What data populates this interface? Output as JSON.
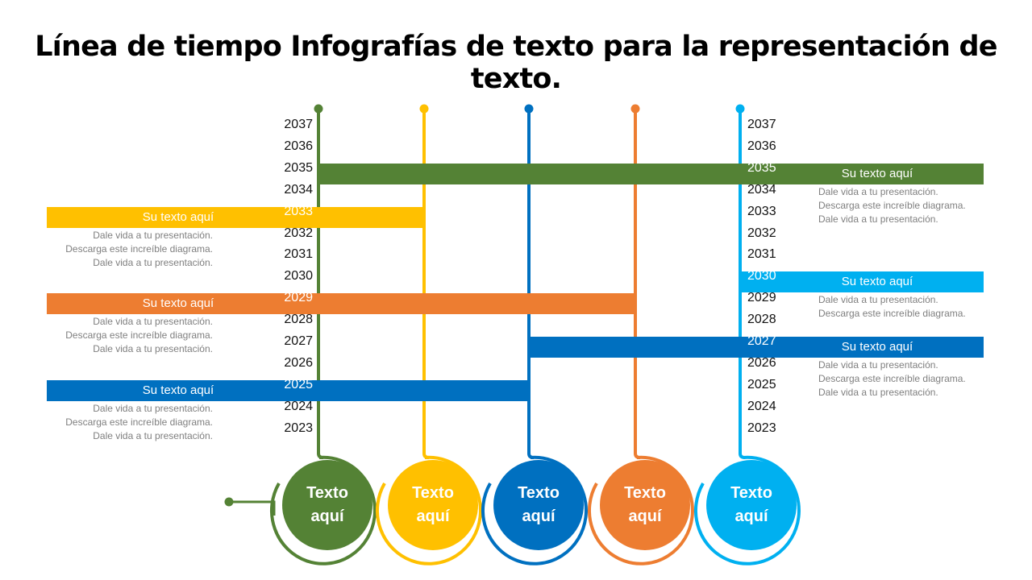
{
  "title": "Línea de tiempo Infografías de texto para la representación de texto.",
  "colors": {
    "green": "#548235",
    "yellow": "#FFC000",
    "blue": "#0070C0",
    "orange": "#ED7D31",
    "lightblue": "#00B0F0"
  },
  "years": [
    "2037",
    "2036",
    "2035",
    "2034",
    "2033",
    "2032",
    "2031",
    "2030",
    "2029",
    "2028",
    "2027",
    "2026",
    "2025",
    "2024",
    "2023"
  ],
  "bars": [
    {
      "color": "green",
      "label": "Su texto aquí",
      "year": "2035",
      "side": "right",
      "from_line": 0
    },
    {
      "color": "yellow",
      "label": "Su texto aquí",
      "year": "2033",
      "side": "left",
      "from_line": 1
    },
    {
      "color": "orange",
      "label": "Su texto aquí",
      "year": "2029",
      "side": "left",
      "from_line": 3
    },
    {
      "color": "blue",
      "label": "Su texto aquí",
      "year": "2025",
      "side": "left",
      "from_line": 2
    },
    {
      "color": "lightblue",
      "label": "Su texto aquí",
      "year": "2030",
      "side": "right",
      "from_line": 4
    },
    {
      "color": "blue",
      "label": "Su texto aquí",
      "year": "2027",
      "side": "right",
      "from_line": 2
    }
  ],
  "descriptions": [
    {
      "side": "left",
      "after_year": "2033",
      "lines": [
        "Dale vida a tu presentación.",
        "Descarga este increíble  diagrama.",
        "Dale vida a tu presentación."
      ]
    },
    {
      "side": "left",
      "after_year": "2029",
      "lines": [
        "Dale vida a tu presentación.",
        "Descarga este increíble  diagrama.",
        "Dale vida a tu presentación."
      ]
    },
    {
      "side": "left",
      "after_year": "2025",
      "lines": [
        "Dale vida a tu presentación.",
        "Descarga este increíble  diagrama.",
        "Dale vida a tu presentación."
      ]
    },
    {
      "side": "right",
      "after_year": "2035",
      "lines": [
        "Dale vida a tu presentación.",
        "Descarga este increíble  diagrama.",
        "Dale vida a tu presentación."
      ]
    },
    {
      "side": "right",
      "after_year": "2030",
      "lines": [
        "Dale vida a tu presentación.",
        "Descarga este increíble  diagrama."
      ]
    },
    {
      "side": "right",
      "after_year": "2027",
      "lines": [
        "Dale vida a tu presentación.",
        "Descarga este increíble  diagrama.",
        "Dale vida a tu presentación."
      ]
    }
  ],
  "circles": [
    {
      "color": "green",
      "line1": "Texto",
      "line2": "aquí"
    },
    {
      "color": "yellow",
      "line1": "Texto",
      "line2": "aquí"
    },
    {
      "color": "blue",
      "line1": "Texto",
      "line2": "aquí"
    },
    {
      "color": "orange",
      "line1": "Texto",
      "line2": "aquí"
    },
    {
      "color": "lightblue",
      "line1": "Texto",
      "line2": "aquí"
    }
  ]
}
